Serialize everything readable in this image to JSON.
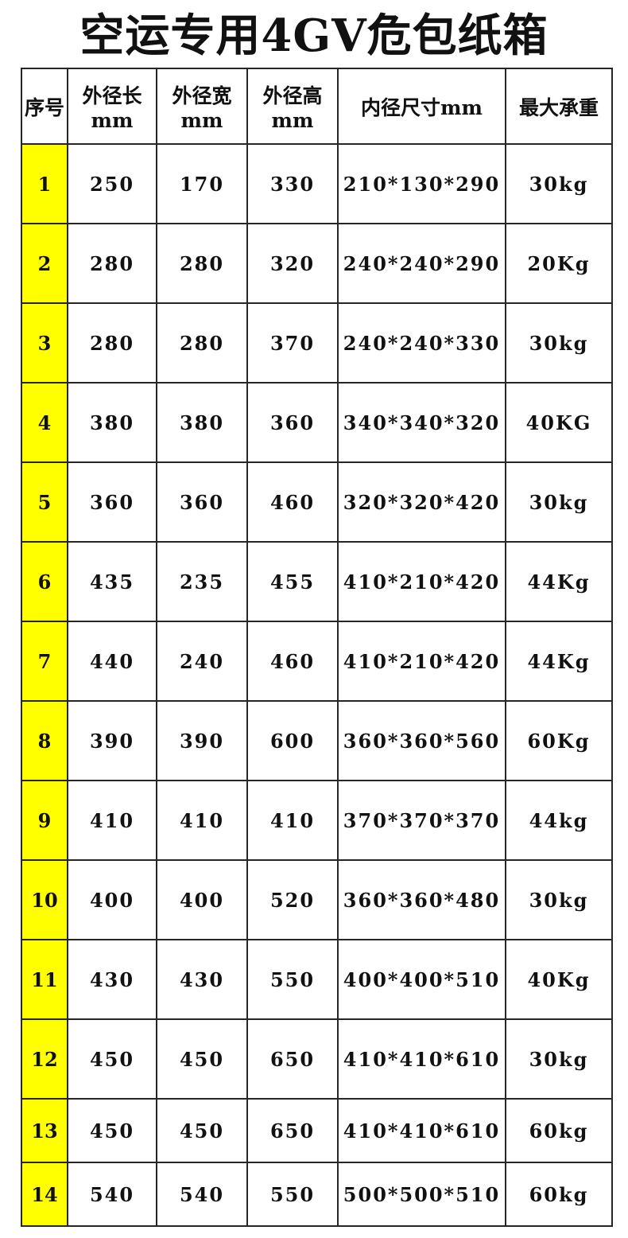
{
  "title": "空运专用4GV危包纸箱",
  "colors": {
    "index_column_bg": "#ffff00",
    "border": "#262626",
    "text": "#111111",
    "background": "#ffffff"
  },
  "table": {
    "headers": [
      "序号",
      "外径长mm",
      "外径宽mm",
      "外径高mm",
      "内径尺寸mm",
      "最大承重"
    ],
    "rows": [
      [
        "1",
        "250",
        "170",
        "330",
        "210*130*290",
        "30kg"
      ],
      [
        "2",
        "280",
        "280",
        "320",
        "240*240*290",
        "20Kg"
      ],
      [
        "3",
        "280",
        "280",
        "370",
        "240*240*330",
        "30kg"
      ],
      [
        "4",
        "380",
        "380",
        "360",
        "340*340*320",
        "40KG"
      ],
      [
        "5",
        "360",
        "360",
        "460",
        "320*320*420",
        "30kg"
      ],
      [
        "6",
        "435",
        "235",
        "455",
        "410*210*420",
        "44Kg"
      ],
      [
        "7",
        "440",
        "240",
        "460",
        "410*210*420",
        "44Kg"
      ],
      [
        "8",
        "390",
        "390",
        "600",
        "360*360*560",
        "60Kg"
      ],
      [
        "9",
        "410",
        "410",
        "410",
        "370*370*370",
        "44kg"
      ],
      [
        "10",
        "400",
        "400",
        "520",
        "360*360*480",
        "30kg"
      ],
      [
        "11",
        "430",
        "430",
        "550",
        "400*400*510",
        "40Kg"
      ],
      [
        "12",
        "450",
        "450",
        "650",
        "410*410*610",
        "30kg"
      ],
      [
        "13",
        "450",
        "450",
        "650",
        "410*410*610",
        "60kg"
      ],
      [
        "14",
        "540",
        "540",
        "550",
        "500*500*510",
        "60kg"
      ]
    ]
  }
}
